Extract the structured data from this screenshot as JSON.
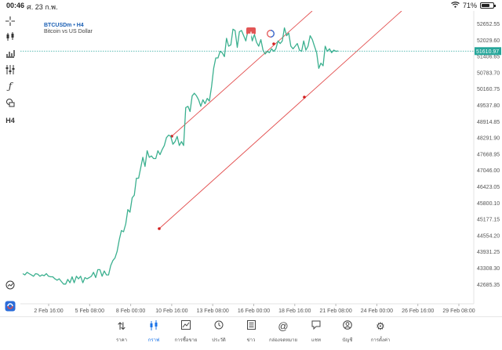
{
  "status": {
    "time": "00:46",
    "date": "ศ. 23 ก.พ.",
    "battery": "71%",
    "battery_level": 0.71
  },
  "instrument": {
    "symbol": "BTCUSDm • H4",
    "description": "Bitcoin vs US Dollar"
  },
  "colors": {
    "price_line": "#3bb08f",
    "trendline": "#e24b4b",
    "current_price_line": "#26a69a",
    "current_price_label": "#26a69a",
    "accent": "#1a73e8"
  },
  "sidebar_tools": [
    "crosshair-icon",
    "candles-icon",
    "bars-icon",
    "indicators-icon",
    "function-icon",
    "objects-icon",
    "timeframe-icon"
  ],
  "sidebar_labels": {
    "timeframe": "H4"
  },
  "chart_data": {
    "type": "line",
    "y_ticks": [
      "52652.55",
      "52029.60",
      "51406.65",
      "50783.70",
      "50160.75",
      "49537.80",
      "48914.85",
      "48291.90",
      "47668.95",
      "47046.00",
      "46423.05",
      "45800.10",
      "45177.15",
      "44554.20",
      "43931.25",
      "43308.30",
      "42685.35"
    ],
    "x_ticks": [
      "2 Feb 16:00",
      "5 Feb 08:00",
      "8 Feb 00:00",
      "10 Feb 16:00",
      "13 Feb 08:00",
      "16 Feb 00:00",
      "18 Feb 16:00",
      "21 Feb 08:00",
      "24 Feb 00:00",
      "26 Feb 16:00",
      "29 Feb 08:00"
    ],
    "ylim": [
      42500,
      53150
    ],
    "current_price": "51610.97",
    "series": [
      {
        "values": [
          43100,
          43050,
          43150,
          43100,
          43050,
          43000,
          43100,
          43080,
          43000,
          43050,
          43020,
          43100,
          43000,
          42980,
          42980,
          42900,
          42850,
          42900,
          42800,
          42700,
          42700,
          42880,
          42750,
          42980,
          42750,
          43000,
          42900,
          43000,
          42750,
          42950,
          42900,
          42950,
          43000,
          43150,
          42950,
          43250,
          43250,
          43000,
          43200,
          43050,
          43050,
          43400,
          43600,
          43700,
          43950,
          44400,
          44750,
          44700,
          45000,
          45550,
          45450,
          46000,
          46100,
          46750,
          46750,
          47150,
          47550,
          47200,
          47800,
          47550,
          47600,
          47500,
          47500,
          47800,
          47650,
          47850,
          48000,
          48300,
          48400,
          48350,
          48050,
          48150,
          48350,
          48000,
          48150,
          48000,
          49450,
          49500,
          49300,
          49900,
          50000,
          49900,
          49750,
          49500,
          49750,
          49600,
          49800,
          49700,
          50250,
          50950,
          51350,
          51350,
          51600,
          51550,
          51400,
          52100,
          51800,
          51850,
          52450,
          52400,
          51750,
          52350,
          52400,
          52200,
          52000,
          52400,
          52450,
          52000,
          52250,
          51950,
          51800,
          52050,
          51650,
          51500,
          51600,
          51550,
          51700,
          51600,
          51700,
          52000,
          51900,
          52000,
          52500,
          52200,
          52300,
          51800,
          51700,
          51800,
          51900,
          51650,
          51600,
          52000,
          51650,
          51800,
          52200,
          52050,
          51800,
          51550,
          50950,
          51150,
          51050,
          51800,
          51600,
          51700,
          51550,
          51650,
          51600,
          51620
        ]
      }
    ]
  },
  "tabs": [
    {
      "label": "ราคา",
      "icon": "quotes-icon"
    },
    {
      "label": "กราฟ",
      "icon": "chart-icon"
    },
    {
      "label": "การซื้อขาย",
      "icon": "trade-icon"
    },
    {
      "label": "ประวัติ",
      "icon": "history-icon"
    },
    {
      "label": "ข่าว",
      "icon": "news-icon"
    },
    {
      "label": "กล่องจดหมาย",
      "icon": "mailbox-icon"
    },
    {
      "label": "แชท",
      "icon": "chat-icon"
    },
    {
      "label": "บัญชี",
      "icon": "account-icon"
    },
    {
      "label": "การตั้งค่า",
      "icon": "settings-icon"
    }
  ]
}
